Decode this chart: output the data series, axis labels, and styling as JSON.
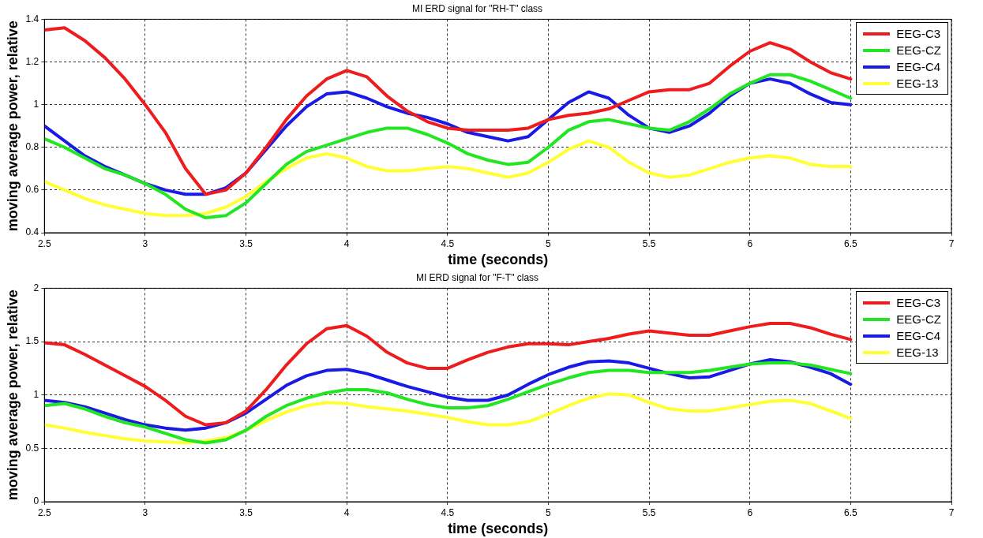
{
  "chart_data": [
    {
      "type": "line",
      "title": "MI ERD signal for \"RH-T\" class",
      "xlabel": "time (seconds)",
      "ylabel": "moving average power, relative",
      "x": [
        2.5,
        2.6,
        2.7,
        2.8,
        2.9,
        3.0,
        3.1,
        3.2,
        3.3,
        3.4,
        3.5,
        3.6,
        3.7,
        3.8,
        3.9,
        4.0,
        4.1,
        4.2,
        4.3,
        4.4,
        4.5,
        4.6,
        4.7,
        4.8,
        4.9,
        5.0,
        5.1,
        5.2,
        5.3,
        5.4,
        5.5,
        5.6,
        5.7,
        5.8,
        5.9,
        6.0,
        6.1,
        6.2,
        6.3,
        6.4,
        6.5
      ],
      "series": [
        {
          "name": "EEG-C3",
          "color": "#ee1c1c",
          "values": [
            1.35,
            1.36,
            1.3,
            1.22,
            1.12,
            1.0,
            0.87,
            0.7,
            0.58,
            0.6,
            0.68,
            0.8,
            0.93,
            1.04,
            1.12,
            1.16,
            1.13,
            1.04,
            0.97,
            0.92,
            0.89,
            0.88,
            0.88,
            0.88,
            0.89,
            0.93,
            0.95,
            0.96,
            0.98,
            1.02,
            1.06,
            1.07,
            1.07,
            1.1,
            1.18,
            1.25,
            1.29,
            1.26,
            1.2,
            1.15,
            1.12
          ]
        },
        {
          "name": "EEG-CZ",
          "color": "#22e622",
          "values": [
            0.84,
            0.8,
            0.75,
            0.7,
            0.67,
            0.63,
            0.58,
            0.51,
            0.47,
            0.48,
            0.54,
            0.63,
            0.72,
            0.78,
            0.81,
            0.84,
            0.87,
            0.89,
            0.89,
            0.86,
            0.82,
            0.77,
            0.74,
            0.72,
            0.73,
            0.8,
            0.88,
            0.92,
            0.93,
            0.91,
            0.89,
            0.88,
            0.92,
            0.98,
            1.05,
            1.1,
            1.14,
            1.14,
            1.11,
            1.07,
            1.03
          ]
        },
        {
          "name": "EEG-C4",
          "color": "#1a1ae6",
          "values": [
            0.9,
            0.83,
            0.76,
            0.71,
            0.67,
            0.63,
            0.6,
            0.58,
            0.58,
            0.61,
            0.68,
            0.79,
            0.9,
            0.99,
            1.05,
            1.06,
            1.03,
            0.99,
            0.96,
            0.94,
            0.91,
            0.87,
            0.85,
            0.83,
            0.85,
            0.93,
            1.01,
            1.06,
            1.03,
            0.95,
            0.89,
            0.87,
            0.9,
            0.96,
            1.04,
            1.1,
            1.12,
            1.1,
            1.05,
            1.01,
            1.0
          ]
        },
        {
          "name": "EEG-13",
          "color": "#ffff33",
          "values": [
            0.64,
            0.6,
            0.56,
            0.53,
            0.51,
            0.49,
            0.48,
            0.48,
            0.49,
            0.52,
            0.57,
            0.64,
            0.7,
            0.75,
            0.77,
            0.75,
            0.71,
            0.69,
            0.69,
            0.7,
            0.71,
            0.7,
            0.68,
            0.66,
            0.68,
            0.73,
            0.79,
            0.83,
            0.8,
            0.73,
            0.68,
            0.66,
            0.67,
            0.7,
            0.73,
            0.75,
            0.76,
            0.75,
            0.72,
            0.71,
            0.71
          ]
        }
      ],
      "xlim": [
        2.5,
        7
      ],
      "xticks": [
        2.5,
        3,
        3.5,
        4,
        4.5,
        5,
        5.5,
        6,
        6.5,
        7
      ],
      "ylim": [
        0.4,
        1.4
      ],
      "yticks": [
        0.4,
        0.6,
        0.8,
        1,
        1.2,
        1.4
      ],
      "grid": true,
      "legend": "top right",
      "marker": "none",
      "line_style": "solid"
    },
    {
      "type": "line",
      "title": "MI ERD signal for \"F-T\" class",
      "xlabel": "time (seconds)",
      "ylabel": "moving average power, relative",
      "x": [
        2.5,
        2.6,
        2.7,
        2.8,
        2.9,
        3.0,
        3.1,
        3.2,
        3.3,
        3.4,
        3.5,
        3.6,
        3.7,
        3.8,
        3.9,
        4.0,
        4.1,
        4.2,
        4.3,
        4.4,
        4.5,
        4.6,
        4.7,
        4.8,
        4.9,
        5.0,
        5.1,
        5.2,
        5.3,
        5.4,
        5.5,
        5.6,
        5.7,
        5.8,
        5.9,
        6.0,
        6.1,
        6.2,
        6.3,
        6.4,
        6.5
      ],
      "series": [
        {
          "name": "EEG-C3",
          "color": "#ee1c1c",
          "values": [
            1.49,
            1.47,
            1.38,
            1.28,
            1.18,
            1.08,
            0.95,
            0.8,
            0.72,
            0.74,
            0.85,
            1.05,
            1.28,
            1.48,
            1.62,
            1.65,
            1.55,
            1.4,
            1.3,
            1.25,
            1.25,
            1.33,
            1.4,
            1.45,
            1.48,
            1.48,
            1.47,
            1.5,
            1.53,
            1.57,
            1.6,
            1.58,
            1.56,
            1.56,
            1.6,
            1.64,
            1.67,
            1.67,
            1.63,
            1.57,
            1.52
          ]
        },
        {
          "name": "EEG-CZ",
          "color": "#22e622",
          "values": [
            0.9,
            0.92,
            0.87,
            0.8,
            0.74,
            0.7,
            0.64,
            0.58,
            0.55,
            0.58,
            0.67,
            0.8,
            0.9,
            0.97,
            1.02,
            1.05,
            1.05,
            1.02,
            0.96,
            0.91,
            0.88,
            0.88,
            0.9,
            0.96,
            1.03,
            1.1,
            1.16,
            1.21,
            1.23,
            1.23,
            1.21,
            1.21,
            1.21,
            1.23,
            1.26,
            1.29,
            1.3,
            1.3,
            1.28,
            1.24,
            1.2
          ]
        },
        {
          "name": "EEG-C4",
          "color": "#1a1ae6",
          "values": [
            0.95,
            0.93,
            0.89,
            0.83,
            0.77,
            0.72,
            0.69,
            0.67,
            0.69,
            0.74,
            0.83,
            0.96,
            1.09,
            1.18,
            1.23,
            1.24,
            1.2,
            1.14,
            1.08,
            1.03,
            0.98,
            0.95,
            0.95,
            1.0,
            1.1,
            1.19,
            1.26,
            1.31,
            1.32,
            1.3,
            1.25,
            1.2,
            1.16,
            1.17,
            1.23,
            1.29,
            1.33,
            1.31,
            1.26,
            1.2,
            1.1
          ]
        },
        {
          "name": "EEG-13",
          "color": "#ffff33",
          "values": [
            0.72,
            0.69,
            0.65,
            0.62,
            0.59,
            0.57,
            0.56,
            0.55,
            0.57,
            0.6,
            0.67,
            0.76,
            0.84,
            0.9,
            0.93,
            0.92,
            0.89,
            0.87,
            0.85,
            0.82,
            0.79,
            0.75,
            0.72,
            0.72,
            0.75,
            0.82,
            0.9,
            0.97,
            1.01,
            1.0,
            0.93,
            0.87,
            0.85,
            0.85,
            0.88,
            0.91,
            0.94,
            0.95,
            0.92,
            0.85,
            0.78
          ]
        }
      ],
      "xlim": [
        2.5,
        7
      ],
      "xticks": [
        2.5,
        3,
        3.5,
        4,
        4.5,
        5,
        5.5,
        6,
        6.5,
        7
      ],
      "ylim": [
        0,
        2
      ],
      "yticks": [
        0,
        0.5,
        1,
        1.5,
        2
      ],
      "grid": true,
      "legend": "top right",
      "marker": "none",
      "line_style": "solid"
    }
  ]
}
